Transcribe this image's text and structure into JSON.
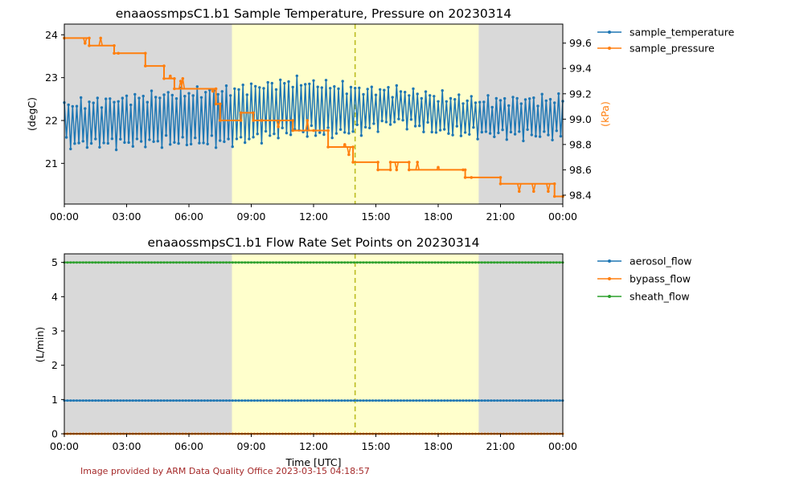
{
  "footer": "Image provided by ARM Data Quality Office 2023-03-15 04:18:57",
  "colors": {
    "night": "#d9d9d9",
    "day": "#ffffcc",
    "marker_line": "#bcbd22",
    "blue": "#1f77b4",
    "orange": "#ff7f0e",
    "green": "#2ca02c"
  },
  "chart_data": [
    {
      "type": "line",
      "title": "enaaossmpsC1.b1 Sample Temperature, Pressure on 20230314",
      "xlabel": "",
      "ylabel": "(degC)",
      "y2label": "(kPa)",
      "x_ticks": [
        "00:00",
        "03:00",
        "06:00",
        "09:00",
        "12:00",
        "15:00",
        "18:00",
        "21:00",
        "00:00"
      ],
      "xlim_hours": [
        0,
        24
      ],
      "ylim": [
        20.05,
        24.25
      ],
      "yticks": [
        "21",
        "22",
        "23",
        "24"
      ],
      "y2lim": [
        98.33,
        99.75
      ],
      "y2ticks": [
        "98.4",
        "98.6",
        "98.8",
        "99.0",
        "99.2",
        "99.4",
        "99.6"
      ],
      "shading": {
        "night_before_hour": 8.07,
        "day_from_hour": 8.07,
        "day_to_hour": 19.95,
        "marker_line_hour": 14.0
      },
      "grid": false,
      "legend": "outside-right",
      "series": [
        {
          "name": "sample_temperature",
          "axis": "left",
          "color": "#1f77b4",
          "pattern": {
            "start_hour": 0,
            "end_hour": 24,
            "step_hour": 0.1,
            "segments": [
              [
                0,
                21.45,
                22.35
              ],
              [
                5,
                21.5,
                22.6
              ],
              [
                8,
                21.5,
                22.7
              ],
              [
                11,
                21.75,
                22.9
              ],
              [
                13,
                21.7,
                22.8
              ],
              [
                14.5,
                21.8,
                22.7
              ],
              [
                16,
                22.0,
                22.7
              ],
              [
                18,
                21.75,
                22.55
              ],
              [
                20,
                21.7,
                22.45
              ],
              [
                24,
                21.65,
                22.5
              ]
            ]
          }
        },
        {
          "name": "sample_pressure",
          "axis": "right",
          "color": "#ff7f0e",
          "values": [
            [
              0,
              99.64
            ],
            [
              1.2,
              99.64
            ],
            [
              1.2,
              99.58
            ],
            [
              2.4,
              99.58
            ],
            [
              2.4,
              99.52
            ],
            [
              3.9,
              99.52
            ],
            [
              3.9,
              99.42
            ],
            [
              4.8,
              99.42
            ],
            [
              4.8,
              99.32
            ],
            [
              5.3,
              99.32
            ],
            [
              5.3,
              99.24
            ],
            [
              7.3,
              99.24
            ],
            [
              7.3,
              99.12
            ],
            [
              7.5,
              99.12
            ],
            [
              7.5,
              98.99
            ],
            [
              8.5,
              98.99
            ],
            [
              8.5,
              99.05
            ],
            [
              9.1,
              99.05
            ],
            [
              9.1,
              98.99
            ],
            [
              11.0,
              98.99
            ],
            [
              11.0,
              98.91
            ],
            [
              12.7,
              98.91
            ],
            [
              12.7,
              98.78
            ],
            [
              13.9,
              98.78
            ],
            [
              13.9,
              98.66
            ],
            [
              15.1,
              98.66
            ],
            [
              15.1,
              98.6
            ],
            [
              15.7,
              98.6
            ],
            [
              15.7,
              98.66
            ],
            [
              16.6,
              98.66
            ],
            [
              16.6,
              98.6
            ],
            [
              19.3,
              98.6
            ],
            [
              19.3,
              98.54
            ],
            [
              21.0,
              98.54
            ],
            [
              21.0,
              98.49
            ],
            [
              23.6,
              98.49
            ],
            [
              23.6,
              98.39
            ],
            [
              24.0,
              98.39
            ]
          ],
          "spikes": [
            [
              1.0,
              99.6
            ],
            [
              1.75,
              99.64
            ],
            [
              2.6,
              99.52
            ],
            [
              5.1,
              99.34
            ],
            [
              5.6,
              99.3
            ],
            [
              5.7,
              99.32
            ],
            [
              7.15,
              99.22
            ],
            [
              9.5,
              98.99
            ],
            [
              10.3,
              98.94
            ],
            [
              11.7,
              98.99
            ],
            [
              12.0,
              98.91
            ],
            [
              13.5,
              98.8
            ],
            [
              13.7,
              98.72
            ],
            [
              16.0,
              98.6
            ],
            [
              17.0,
              98.66
            ],
            [
              18.0,
              98.62
            ],
            [
              19.2,
              98.6
            ],
            [
              19.6,
              98.54
            ],
            [
              21.9,
              98.43
            ],
            [
              22.6,
              98.43
            ],
            [
              23.3,
              98.43
            ]
          ]
        }
      ]
    },
    {
      "type": "line",
      "title": "enaaossmpsC1.b1 Flow Rate Set Points on 20230314",
      "xlabel": "Time [UTC]",
      "ylabel": "(L/min)",
      "x_ticks": [
        "00:00",
        "03:00",
        "06:00",
        "09:00",
        "12:00",
        "15:00",
        "18:00",
        "21:00",
        "00:00"
      ],
      "xlim_hours": [
        0,
        24
      ],
      "ylim": [
        0,
        5.25
      ],
      "yticks": [
        "0",
        "1",
        "2",
        "3",
        "4",
        "5"
      ],
      "shading": {
        "night_before_hour": 8.07,
        "day_from_hour": 8.07,
        "day_to_hour": 19.95,
        "marker_line_hour": 14.0
      },
      "grid": false,
      "legend": "outside-right",
      "series": [
        {
          "name": "aerosol_flow",
          "color": "#1f77b4",
          "constant": 0.97
        },
        {
          "name": "bypass_flow",
          "color": "#ff7f0e",
          "constant": 0.0
        },
        {
          "name": "sheath_flow",
          "color": "#2ca02c",
          "constant": 5.0
        }
      ]
    }
  ]
}
